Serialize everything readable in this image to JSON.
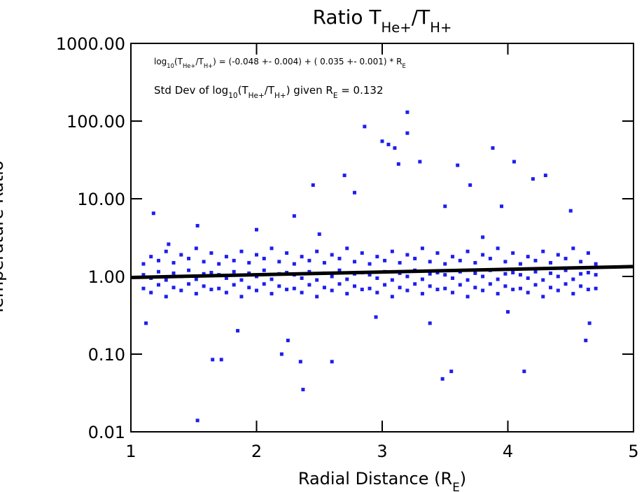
{
  "chart_data": {
    "type": "scatter",
    "title": [
      "Ratio T",
      "He+",
      "/T",
      "H+"
    ],
    "annotations": [
      [
        "log",
        "10",
        "(T",
        "He+",
        "/T",
        "H+",
        ") = (-0.048 +- 0.004) + ( 0.035 +- 0.001) * R",
        "E"
      ],
      [
        "Std Dev of log",
        "10",
        "(T",
        "He+",
        "/T",
        "H+",
        ") given R",
        "E",
        " = 0.132"
      ]
    ],
    "x_label": [
      "Radial Distance (R",
      "E",
      ")"
    ],
    "y_label": "Temperature Ratio",
    "xlim": [
      1,
      5
    ],
    "xticks": [
      1,
      2,
      3,
      4,
      5
    ],
    "ylim": [
      0.01,
      1000
    ],
    "yscale": "log",
    "yticks": [
      {
        "value": 0.01,
        "label": "0.01"
      },
      {
        "value": 0.1,
        "label": "0.10"
      },
      {
        "value": 1,
        "label": "1.00"
      },
      {
        "value": 10,
        "label": "10.00"
      },
      {
        "value": 100,
        "label": "100.00"
      },
      {
        "value": 1000,
        "label": "1000.00"
      }
    ],
    "series": [
      {
        "color": "#1e1ef0",
        "x": [
          1.1,
          1.16,
          1.22,
          1.28,
          1.34,
          1.4,
          1.46,
          1.52,
          1.58,
          1.64,
          1.7,
          1.76,
          1.82,
          1.88,
          1.94,
          2.0,
          2.06,
          2.12,
          2.18,
          2.24,
          2.3,
          2.36,
          2.42,
          2.48,
          2.54,
          2.6,
          2.66,
          2.72,
          2.78,
          2.84,
          2.9,
          2.96,
          3.02,
          3.08,
          3.14,
          3.2,
          3.26,
          3.32,
          3.38,
          3.44,
          3.5,
          3.56,
          3.62,
          3.68,
          3.74,
          3.8,
          3.86,
          3.92,
          3.98,
          4.04,
          4.1,
          4.16,
          4.22,
          4.28,
          4.34,
          4.4,
          4.46,
          4.52,
          4.58,
          4.64,
          4.7,
          1.1,
          1.16,
          1.22,
          1.28,
          1.34,
          1.4,
          1.46,
          1.52,
          1.58,
          1.64,
          1.7,
          1.76,
          1.82,
          1.88,
          1.94,
          2.0,
          2.06,
          2.12,
          2.18,
          2.24,
          2.3,
          2.36,
          2.42,
          2.48,
          2.54,
          2.6,
          2.66,
          2.72,
          2.78,
          2.84,
          2.9,
          2.96,
          3.02,
          3.08,
          3.14,
          3.2,
          3.26,
          3.32,
          3.38,
          3.44,
          3.5,
          3.56,
          3.62,
          3.68,
          3.74,
          3.8,
          3.86,
          3.92,
          3.98,
          4.04,
          4.1,
          4.16,
          4.22,
          4.28,
          4.34,
          4.4,
          4.46,
          4.52,
          4.58,
          4.64,
          4.7,
          1.1,
          1.16,
          1.22,
          1.28,
          1.34,
          1.4,
          1.46,
          1.52,
          1.58,
          1.64,
          1.7,
          1.76,
          1.82,
          1.88,
          1.94,
          2.0,
          2.06,
          2.12,
          2.18,
          2.24,
          2.3,
          2.36,
          2.42,
          2.48,
          2.54,
          2.6,
          2.66,
          2.72,
          2.78,
          2.84,
          2.9,
          2.96,
          3.02,
          3.08,
          3.14,
          3.2,
          3.26,
          3.32,
          3.38,
          3.44,
          3.5,
          3.56,
          3.62,
          3.68,
          3.74,
          3.8,
          3.86,
          3.92,
          3.98,
          4.04,
          4.1,
          4.16,
          4.22,
          4.28,
          4.34,
          4.4,
          4.46,
          4.52,
          4.58,
          4.64,
          4.7,
          1.18,
          1.12,
          1.53,
          1.53,
          1.65,
          1.72,
          1.85,
          2.0,
          2.2,
          2.25,
          2.3,
          2.35,
          2.37,
          2.45,
          2.6,
          2.7,
          2.78,
          2.86,
          2.95,
          3.0,
          3.05,
          3.1,
          3.13,
          3.2,
          3.2,
          3.3,
          3.38,
          3.48,
          3.55,
          3.6,
          3.7,
          3.88,
          3.95,
          4.05,
          4.13,
          4.2,
          4.3,
          4.5,
          4.62,
          4.65,
          3.5,
          2.5,
          3.8,
          1.3,
          4.0
        ],
        "values": [
          1.45,
          1.8,
          1.6,
          2.1,
          1.5,
          1.9,
          1.7,
          2.3,
          1.55,
          2.0,
          1.45,
          1.8,
          1.6,
          2.1,
          1.5,
          1.9,
          1.7,
          2.3,
          1.55,
          2.0,
          1.45,
          1.8,
          1.6,
          2.1,
          1.5,
          1.9,
          1.7,
          2.3,
          1.55,
          2.0,
          1.45,
          1.8,
          1.6,
          2.1,
          1.5,
          1.9,
          1.7,
          2.3,
          1.55,
          2.0,
          1.45,
          1.8,
          1.6,
          2.1,
          1.5,
          1.9,
          1.7,
          2.3,
          1.55,
          2.0,
          1.45,
          1.8,
          1.6,
          2.1,
          1.5,
          1.9,
          1.7,
          2.3,
          1.55,
          2.0,
          1.45,
          1.05,
          0.95,
          1.15,
          0.9,
          1.1,
          1.0,
          1.2,
          0.92,
          1.08,
          1.12,
          1.05,
          0.95,
          1.15,
          0.9,
          1.1,
          1.0,
          1.2,
          0.92,
          1.08,
          1.12,
          1.05,
          0.95,
          1.15,
          0.9,
          1.1,
          1.0,
          1.2,
          0.92,
          1.08,
          1.12,
          1.05,
          0.95,
          1.15,
          0.9,
          1.1,
          1.0,
          1.2,
          0.92,
          1.08,
          1.12,
          1.05,
          0.95,
          1.15,
          0.9,
          1.1,
          1.0,
          1.2,
          0.92,
          1.08,
          1.12,
          1.05,
          0.95,
          1.15,
          0.9,
          1.1,
          1.0,
          1.2,
          0.92,
          1.08,
          1.12,
          1.05,
          0.7,
          0.62,
          0.78,
          0.55,
          0.72,
          0.66,
          0.8,
          0.6,
          0.75,
          0.68,
          0.7,
          0.62,
          0.78,
          0.55,
          0.72,
          0.66,
          0.8,
          0.6,
          0.75,
          0.68,
          0.7,
          0.62,
          0.78,
          0.55,
          0.72,
          0.66,
          0.8,
          0.6,
          0.75,
          0.68,
          0.7,
          0.62,
          0.78,
          0.55,
          0.72,
          0.66,
          0.8,
          0.6,
          0.75,
          0.68,
          0.7,
          0.62,
          0.78,
          0.55,
          0.72,
          0.66,
          0.8,
          0.6,
          0.75,
          0.68,
          0.7,
          0.62,
          0.78,
          0.55,
          0.72,
          0.66,
          0.8,
          0.6,
          0.75,
          0.68,
          0.7,
          6.5,
          0.25,
          4.5,
          0.014,
          0.085,
          0.085,
          0.2,
          4.0,
          0.1,
          0.15,
          6.0,
          0.08,
          0.035,
          15,
          0.08,
          20,
          12,
          85,
          0.3,
          55,
          50,
          45,
          28,
          130,
          70,
          30,
          0.25,
          0.048,
          0.06,
          27,
          15,
          45,
          8,
          30,
          0.06,
          18,
          20,
          7,
          0.15,
          0.25,
          8,
          3.5,
          3.2,
          2.6,
          0.35
        ]
      }
    ],
    "fit_line": {
      "color": "#000000",
      "x": [
        1,
        5
      ],
      "values": [
        0.97,
        1.34
      ]
    }
  }
}
